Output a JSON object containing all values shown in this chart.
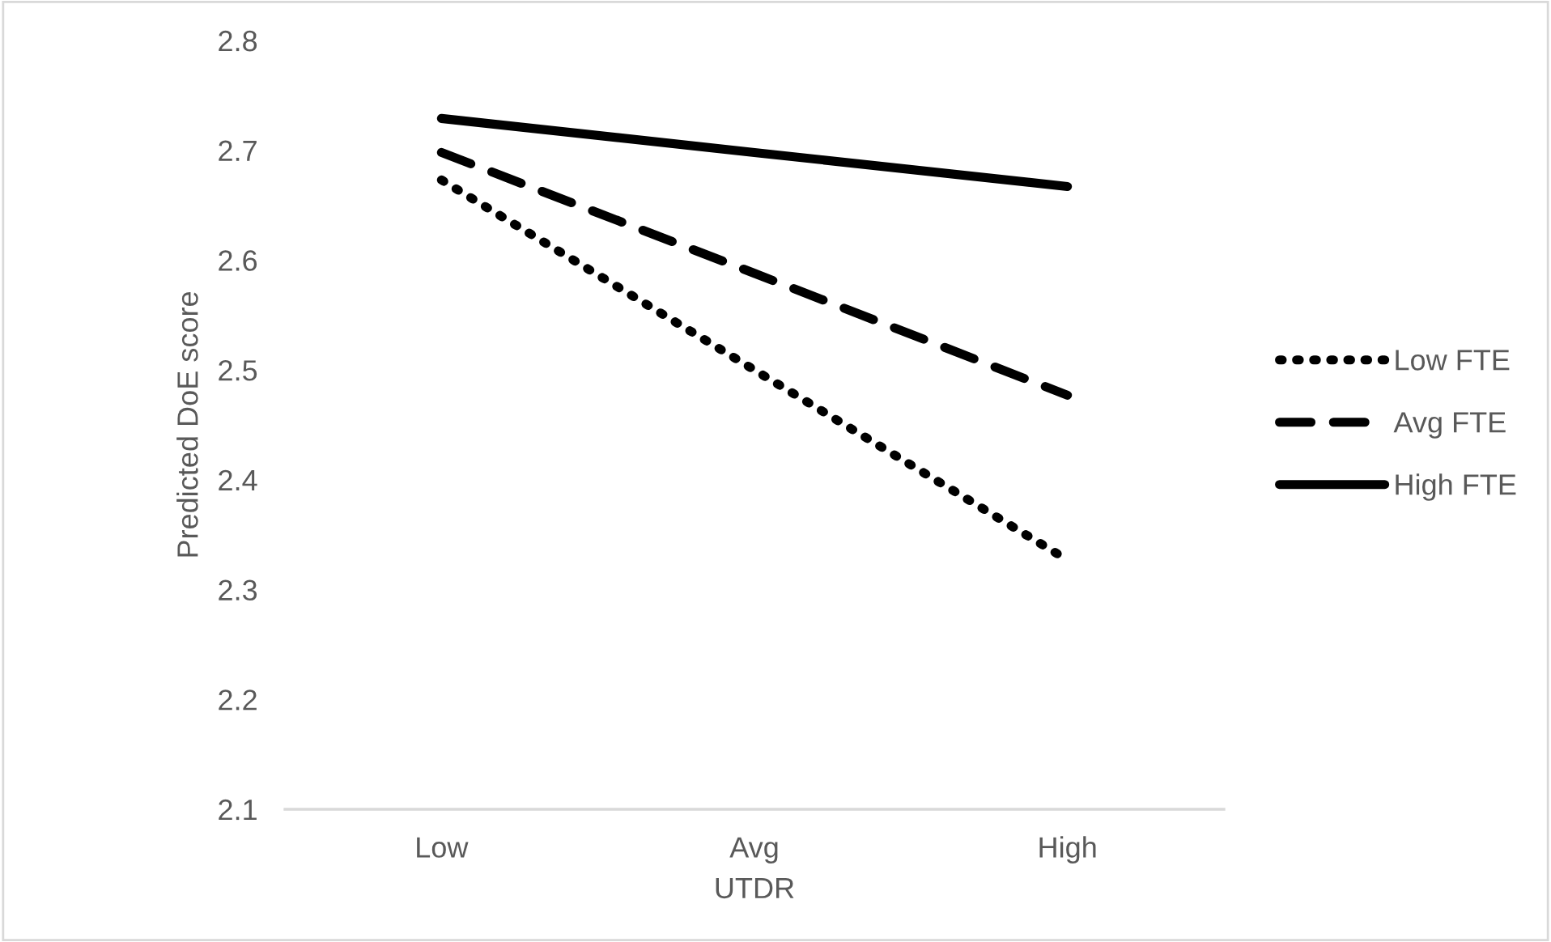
{
  "chart_data": {
    "type": "line",
    "xlabel": "UTDR",
    "ylabel": "Predicted DoE score",
    "categories": [
      "Low",
      "Avg",
      "High"
    ],
    "series": [
      {
        "name": "Low FTE",
        "color": "#000000",
        "line_style": "dotted",
        "values": [
          2.673,
          2.5,
          2.327
        ]
      },
      {
        "name": "Avg FTE",
        "color": "#000000",
        "line_style": "dashed",
        "values": [
          2.698,
          2.588,
          2.477
        ]
      },
      {
        "name": "High FTE",
        "color": "#000000",
        "line_style": "solid",
        "values": [
          2.729,
          2.698,
          2.667
        ]
      }
    ],
    "ylim": [
      2.1,
      2.8
    ],
    "yticks": [
      2.1,
      2.2,
      2.3,
      2.4,
      2.5,
      2.6,
      2.7,
      2.8
    ],
    "grid": false,
    "legend": "right",
    "marker": "none"
  }
}
